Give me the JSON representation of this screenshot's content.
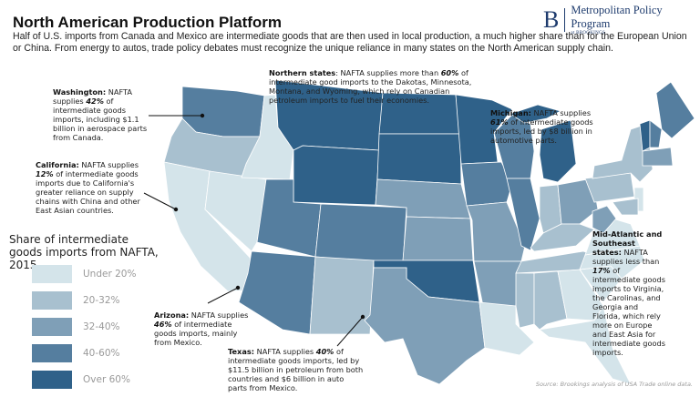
{
  "header": {
    "title": "North American Production Platform",
    "intro": "Half of U.S. imports from Canada and Mexico are intermediate goods that are then used in local production, a much higher share than for the European Union or China. From energy to autos, trade policy debates must recognize the unique reliance in many states on the North American supply chain."
  },
  "logo": {
    "letter": "B",
    "name": "Metropolitan Policy Program",
    "sub": "at BROOKINGS"
  },
  "legend": {
    "title": "Share of intermediate goods imports from NAFTA, 2015",
    "items": [
      {
        "label": "Under 20%",
        "color": "#d4e4ea"
      },
      {
        "label": "20-32%",
        "color": "#a8c0cf"
      },
      {
        "label": "32-40%",
        "color": "#7f9fb7"
      },
      {
        "label": "40-60%",
        "color": "#557e9f"
      },
      {
        "label": "Over 60%",
        "color": "#2f6189"
      }
    ]
  },
  "map_data": {
    "state_category": {
      "WA": "40-60%",
      "OR": "20-32%",
      "CA": "Under 20%",
      "NV": "Under 20%",
      "ID": "Under 20%",
      "MT": "Over 60%",
      "WY": "Over 60%",
      "UT": "40-60%",
      "AZ": "40-60%",
      "CO": "40-60%",
      "NM": "20-32%",
      "ND": "Over 60%",
      "SD": "Over 60%",
      "NE": "32-40%",
      "KS": "32-40%",
      "OK": "Over 60%",
      "TX": "32-40%",
      "MN": "Over 60%",
      "IA": "40-60%",
      "MO": "32-40%",
      "AR": "32-40%",
      "LA": "Under 20%",
      "WI": "40-60%",
      "IL": "40-60%",
      "MI": "Over 60%",
      "IN": "20-32%",
      "OH": "32-40%",
      "KY": "20-32%",
      "TN": "20-32%",
      "MS": "20-32%",
      "AL": "20-32%",
      "GA": "Under 20%",
      "FL": "Under 20%",
      "SC": "Under 20%",
      "NC": "Under 20%",
      "VA": "Under 20%",
      "WV": "32-40%",
      "PA": "20-32%",
      "NY": "20-32%",
      "ME": "40-60%",
      "VT": "Over 60%",
      "NH": "40-60%",
      "MA": "32-40%",
      "NJ": "Under 20%",
      "MD": "20-32%"
    }
  },
  "notes": {
    "washington": {
      "name": "Washington:",
      "pre": " NAFTA supplies ",
      "pct": "42%",
      "post": " of intermediate goods imports, including $1.1 billion in aerospace parts from Canada."
    },
    "california": {
      "name": "California:",
      "pre": " NAFTA supplies ",
      "pct": "12%",
      "post": " of intermediate goods imports due to California's greater reliance on supply chains with China and other East Asian countries."
    },
    "northern": {
      "name": "Northern states",
      "pre": ": NAFTA supplies more than ",
      "pct": "60%",
      "post": " of intermediate good imports to the Dakotas, Minnesota, Montana, and Wyoming, which rely on Canadian petroleum imports to fuel their economies."
    },
    "michigan": {
      "name": "Michigan:",
      "pre": " NAFTA supplies ",
      "pct": "61%",
      "post": " of intermediate goods imports, led by $8 billion in automotive parts."
    },
    "midatlantic": {
      "name": "Mid-Atlantic and Southeast states:",
      "pre": " NAFTA supplies less than ",
      "pct": "17%",
      "post": " of intermediate goods imports to Virginia, the Carolinas, and Georgia and Florida, which rely more on Europe and East Asia for intermediate goods imports."
    },
    "arizona": {
      "name": "Arizona:",
      "pre": " NAFTA supplies ",
      "pct": "46%",
      "post": " of intermediate goods imports, mainly from Mexico."
    },
    "texas": {
      "name": "Texas:",
      "pre": " NAFTA supplies ",
      "pct": "40%",
      "post": " of intermediate goods imports, led by $11.5 billion in petroleum from both countries and $6 billion in auto parts from Mexico."
    }
  },
  "source": "Source: Brookings analysis of USA Trade online data."
}
